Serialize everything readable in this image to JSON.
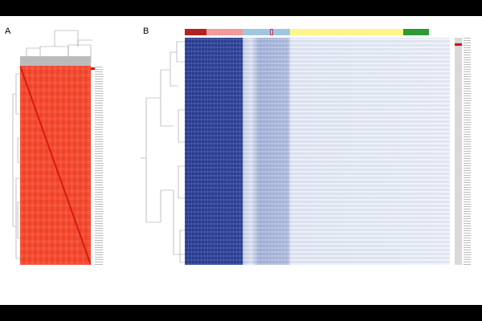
{
  "panels": {
    "a": {
      "label": "A"
    },
    "b": {
      "label": "B"
    }
  },
  "colors": {
    "heatmap_a": "#f4472c",
    "heatmap_b_high": "#2a3f94",
    "heatmap_b_low": "#eef3fc",
    "marker": "#e0001a",
    "class_bar": [
      "#b22222",
      "#f4999a",
      "#9fc8e0",
      "#fdf58a",
      "#2e9a36"
    ]
  }
}
